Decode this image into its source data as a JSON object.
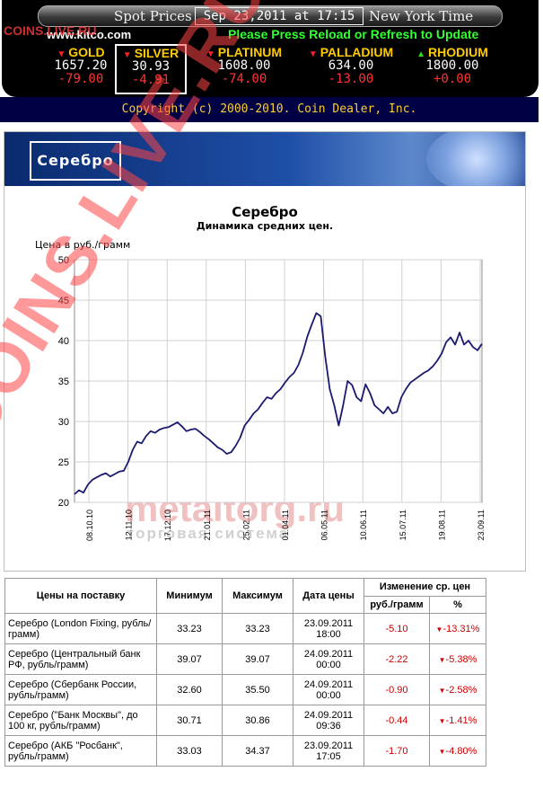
{
  "kitco": {
    "title_left": "Spot Prices",
    "datetime": "Sep 23,2011 at 17:15",
    "title_right": "New York Time",
    "site": "www.kitco.com",
    "notice": "Please Press Reload or Refresh to Update",
    "metals": [
      {
        "name": "GOLD",
        "price": "1657.20",
        "change": "-79.00",
        "dir": "down"
      },
      {
        "name": "SILVER",
        "price": "30.93",
        "change": "-4.91",
        "dir": "down",
        "selected": true
      },
      {
        "name": "PLATINUM",
        "price": "1608.00",
        "change": "-74.00",
        "dir": "down"
      },
      {
        "name": "PALLADIUM",
        "price": "634.00",
        "change": "-13.00",
        "dir": "down"
      },
      {
        "name": "RHODIUM",
        "price": "1800.00",
        "change": "+0.00",
        "dir": "up"
      }
    ],
    "copyright": "Copyright (c) 2000-2010. Coin Dealer, Inc."
  },
  "panel": {
    "tag": "Серебро",
    "chart_title": "Серебро",
    "chart_subtitle": "Динамика средних цен.",
    "y_axis_label": "Цена в руб./грамм",
    "watermark_main": "metaltorg.ru",
    "watermark_sub": "торговая система"
  },
  "watermark": {
    "diagonal": "COINS.LIVE.RU",
    "corner": "COINS.LIVE.RU"
  },
  "chart_data": {
    "type": "line",
    "title": "Серебро",
    "subtitle": "Динамика средних цен.",
    "ylabel": "Цена в руб./грамм",
    "ylim": [
      20,
      50
    ],
    "yticks": [
      20,
      25,
      30,
      35,
      40,
      45,
      50
    ],
    "x_tick_labels": [
      "08.10.10",
      "12.11.10",
      "17.12.10",
      "21.01.11",
      "25.02.11",
      "01.04.11",
      "06.05.11",
      "10.06.11",
      "15.07.11",
      "19.08.11",
      "23.09.11"
    ],
    "grid": true,
    "legend": "none",
    "series_color": "#1a1a6e",
    "series": [
      {
        "values": [
          21,
          21.5,
          21.2,
          22.2,
          22.8,
          23.1,
          23.4,
          23.6,
          23.2,
          23.5,
          23.8,
          23.9,
          25,
          26.5,
          27.5,
          27.3,
          28.2,
          28.8,
          28.6,
          29,
          29.2,
          29.3,
          29.6,
          29.9,
          29.4,
          28.8,
          29,
          29.1,
          28.7,
          28.2,
          27.8,
          27.3,
          26.8,
          26.5,
          26,
          26.2,
          27,
          28,
          29.5,
          30.2,
          31,
          31.5,
          32.3,
          33,
          32.8,
          33.5,
          34,
          34.8,
          35.5,
          36,
          37,
          38.5,
          40.5,
          42,
          43.4,
          43,
          38,
          34,
          32,
          29.5,
          32,
          35,
          34.5,
          33,
          32.5,
          34.6,
          33.5,
          32,
          31.5,
          31,
          31.8,
          31,
          31.2,
          33,
          34,
          34.8,
          35.2,
          35.6,
          36,
          36.3,
          36.8,
          37.5,
          38.4,
          39.8,
          40.4,
          39.5,
          41,
          39.5,
          40,
          39.2,
          38.8,
          39.6
        ]
      }
    ]
  },
  "table": {
    "headers": {
      "name": "Цены на поставку",
      "min": "Минимум",
      "max": "Максимум",
      "date": "Дата цены",
      "change": "Изменение ср. цен",
      "change_abs": "руб./грамм",
      "change_pct": "%"
    },
    "rows": [
      {
        "name": "Серебро (London Fixing, рубль/грамм)",
        "min": "33.23",
        "max": "33.23",
        "date": "23.09.2011",
        "time": "18:00",
        "abs": "-5.10",
        "pct": "-13.31%"
      },
      {
        "name": "Серебро (Центральный банк РФ, рубль/грамм)",
        "min": "39.07",
        "max": "39.07",
        "date": "24.09.2011",
        "time": "00:00",
        "abs": "-2.22",
        "pct": "-5.38%"
      },
      {
        "name": "Серебро (Сбербанк России, рубль/грамм)",
        "min": "32.60",
        "max": "35.50",
        "date": "24.09.2011",
        "time": "00:00",
        "abs": "-0.90",
        "pct": "-2.58%"
      },
      {
        "name": "Серебро (\"Банк Москвы\", до 100 кг, рубль/грамм)",
        "min": "30.71",
        "max": "30.86",
        "date": "24.09.2011",
        "time": "09:36",
        "abs": "-0.44",
        "pct": "-1.41%"
      },
      {
        "name": "Серебро (АКБ \"Росбанк\", рубль/грамм)",
        "min": "33.03",
        "max": "34.37",
        "date": "23.09.2011",
        "time": "17:05",
        "abs": "-1.70",
        "pct": "-4.80%"
      }
    ]
  }
}
